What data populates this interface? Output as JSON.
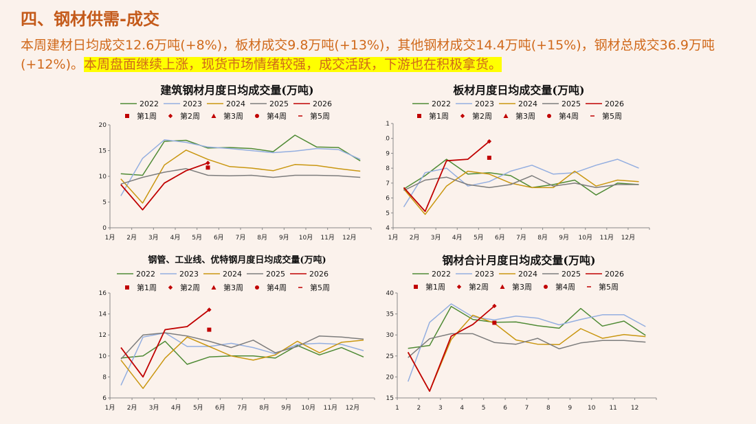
{
  "page": {
    "title": "四、钢材供需-成交",
    "summary_plain": "本周建材日均成交12.6万吨(+8%)，板材成交9.8万吨(+13%)，其他钢材成交14.4万吨(+15%)，钢材总成交36.9万吨(+12%)。",
    "summary_highlight": "本周盘面继续上涨，现货市场情绪较强，成交活跃，下游也在积极拿货。"
  },
  "colors": {
    "title": "#c45a1a",
    "summary_text": "#d0691b",
    "highlight": "#ffff00",
    "background": "#fbf2ec",
    "s2022": "#4e8a34",
    "s2023": "#93aee0",
    "s2024": "#c9960f",
    "s2025": "#7c7c7c",
    "s2026": "#c00000"
  },
  "chart_data": [
    {
      "type": "line",
      "title": "建筑钢材月度日均成交量(万吨)",
      "x": [
        "1月",
        "2月",
        "3月",
        "4月",
        "5月",
        "6月",
        "7月",
        "8月",
        "9月",
        "10月",
        "11月",
        "12月"
      ],
      "ylim": [
        0,
        20
      ],
      "yticks": [
        0,
        5,
        10,
        15,
        20
      ],
      "legend_position": "top",
      "series": [
        {
          "name": "2022",
          "values": [
            10.5,
            10.2,
            16.8,
            17.0,
            15.5,
            15.6,
            15.4,
            14.8,
            18.0,
            15.7,
            15.6,
            13.0
          ]
        },
        {
          "name": "2023",
          "values": [
            6.2,
            13.5,
            17.1,
            16.6,
            15.7,
            15.4,
            15.0,
            14.6,
            14.9,
            15.4,
            15.2,
            13.3
          ]
        },
        {
          "name": "2024",
          "values": [
            9.5,
            4.8,
            12.2,
            15.1,
            13.3,
            11.9,
            11.6,
            11.1,
            12.3,
            12.1,
            11.5,
            11.0
          ]
        },
        {
          "name": "2025",
          "values": [
            8.5,
            9.8,
            10.8,
            11.5,
            10.2,
            10.1,
            10.2,
            9.8,
            10.2,
            10.2,
            10.1,
            9.8
          ]
        },
        {
          "name": "2026",
          "values": [
            8.4,
            3.5,
            8.7,
            11.1,
            12.6,
            null,
            null,
            null,
            null,
            null,
            null,
            null
          ]
        }
      ],
      "weekly": [
        {
          "name": "第1周",
          "shape": "square",
          "x_index": 4,
          "value": 11.7
        },
        {
          "name": "第2周",
          "shape": "diamond",
          "x_index": 4,
          "value": 12.6
        }
      ],
      "weekly_legend": [
        "第1周",
        "第2周",
        "第3周",
        "第4周",
        "第5周"
      ]
    },
    {
      "type": "line",
      "title": "板材月度日均成交量(万吨)",
      "x": [
        "1月",
        "2月",
        "3月",
        "4月",
        "5月",
        "6月",
        "7月",
        "8月",
        "9月",
        "10月",
        "11月",
        "12月"
      ],
      "ylim": [
        4,
        11
      ],
      "yticks": [
        4,
        5,
        6,
        7,
        8,
        9,
        10,
        11
      ],
      "legend_position": "top",
      "series": [
        {
          "name": "2022",
          "values": [
            6.6,
            7.5,
            8.6,
            7.6,
            7.7,
            7.5,
            6.7,
            6.9,
            7.2,
            6.2,
            7.0,
            6.9
          ]
        },
        {
          "name": "2023",
          "values": [
            5.4,
            7.7,
            8.0,
            6.8,
            7.1,
            7.8,
            8.2,
            7.6,
            7.7,
            8.2,
            8.6,
            8.0
          ]
        },
        {
          "name": "2024",
          "values": [
            6.6,
            4.9,
            6.8,
            7.8,
            7.6,
            7.0,
            6.7,
            6.7,
            7.8,
            6.8,
            7.2,
            7.1
          ]
        },
        {
          "name": "2025",
          "values": [
            6.5,
            7.2,
            7.4,
            6.9,
            6.7,
            6.9,
            7.5,
            6.8,
            7.0,
            6.7,
            6.9,
            6.9
          ]
        },
        {
          "name": "2026",
          "values": [
            6.7,
            5.1,
            8.5,
            8.6,
            9.8,
            null,
            null,
            null,
            null,
            null,
            null,
            null
          ]
        }
      ],
      "weekly": [
        {
          "name": "第1周",
          "shape": "square",
          "x_index": 4,
          "value": 8.7
        },
        {
          "name": "第2周",
          "shape": "diamond",
          "x_index": 4,
          "value": 9.8
        }
      ],
      "weekly_legend": [
        "第1周",
        "第2周",
        "第3周",
        "第4周",
        "第5周"
      ]
    },
    {
      "type": "line",
      "title": "钢管、工业线、优特钢月度日均成交量(万吨)",
      "x": [
        "1月",
        "2月",
        "3月",
        "4月",
        "5月",
        "6月",
        "7月",
        "8月",
        "9月",
        "10月",
        "11月",
        "12月"
      ],
      "ylim": [
        6,
        16
      ],
      "yticks": [
        6,
        8,
        10,
        12,
        14,
        16
      ],
      "legend_position": "top",
      "series": [
        {
          "name": "2022",
          "values": [
            9.8,
            10.0,
            11.4,
            9.2,
            9.9,
            10.0,
            10.0,
            9.8,
            11.0,
            10.1,
            10.8,
            9.9
          ]
        },
        {
          "name": "2023",
          "values": [
            7.2,
            11.8,
            12.2,
            10.9,
            10.9,
            11.2,
            10.8,
            10.2,
            11.1,
            11.2,
            11.1,
            10.5
          ]
        },
        {
          "name": "2024",
          "values": [
            9.6,
            6.9,
            9.8,
            11.8,
            10.9,
            10.0,
            9.6,
            10.1,
            11.4,
            10.3,
            11.3,
            11.5
          ]
        },
        {
          "name": "2025",
          "values": [
            9.7,
            12.0,
            12.2,
            11.9,
            11.4,
            10.8,
            11.5,
            10.3,
            10.9,
            11.9,
            11.8,
            11.6
          ]
        },
        {
          "name": "2026",
          "values": [
            10.8,
            8.0,
            12.5,
            12.8,
            14.4,
            null,
            null,
            null,
            null,
            null,
            null,
            null
          ]
        }
      ],
      "weekly": [
        {
          "name": "第1周",
          "shape": "square",
          "x_index": 4,
          "value": 12.5
        },
        {
          "name": "第2周",
          "shape": "diamond",
          "x_index": 4,
          "value": 14.4
        }
      ],
      "weekly_legend": [
        "第1周",
        "第2周",
        "第3周",
        "第4周",
        "第5周"
      ]
    },
    {
      "type": "line",
      "title": "钢材合计月度日均成交量(万吨)",
      "x": [
        "1",
        "2",
        "3",
        "4",
        "5",
        "6",
        "7",
        "8",
        "9",
        "10",
        "11",
        "12"
      ],
      "ylim": [
        15,
        40
      ],
      "yticks": [
        15,
        20,
        25,
        30,
        35,
        40
      ],
      "legend_position": "top",
      "series": [
        {
          "name": "2022",
          "values": [
            26.8,
            27.5,
            36.8,
            33.7,
            33.0,
            33.1,
            32.2,
            31.6,
            36.3,
            32.1,
            33.3,
            29.9
          ]
        },
        {
          "name": "2023",
          "values": [
            18.9,
            33.0,
            37.4,
            34.3,
            33.6,
            34.5,
            34.0,
            32.4,
            33.7,
            34.8,
            34.8,
            32.0
          ]
        },
        {
          "name": "2024",
          "values": [
            25.8,
            16.6,
            28.9,
            34.7,
            32.8,
            28.8,
            27.8,
            27.7,
            31.5,
            29.2,
            30.1,
            29.6
          ]
        },
        {
          "name": "2025",
          "values": [
            24.6,
            29.1,
            30.3,
            30.3,
            28.2,
            27.8,
            29.2,
            26.7,
            28.1,
            28.7,
            28.7,
            28.3
          ]
        },
        {
          "name": "2026",
          "values": [
            25.9,
            16.6,
            29.7,
            32.5,
            36.9,
            null,
            null,
            null,
            null,
            null,
            null,
            null
          ]
        }
      ],
      "weekly": [
        {
          "name": "第1周",
          "shape": "square",
          "x_index": 4,
          "value": 32.9
        },
        {
          "name": "第2周",
          "shape": "diamond",
          "x_index": 4,
          "value": 36.9
        }
      ],
      "weekly_legend": [
        "第1周",
        "第2周",
        "第3周",
        "第4周",
        "第5周"
      ]
    }
  ]
}
